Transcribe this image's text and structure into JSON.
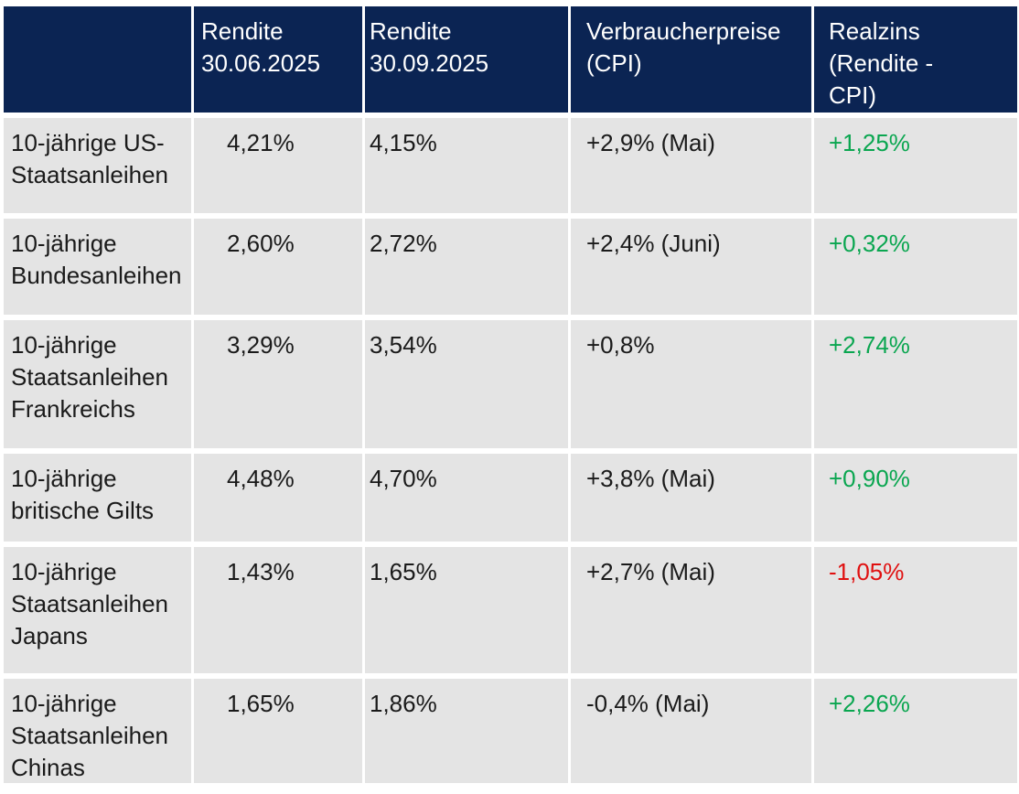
{
  "chart_data": {
    "type": "table",
    "columns": [
      "",
      "Rendite 30.06.2025",
      "Rendite 30.09.2025",
      "Verbraucherpreise (CPI)",
      "Realzins (Rendite - CPI)"
    ],
    "rows": [
      {
        "label": "10-jährige US-Staatsanleihen",
        "rendite_jun": "4,21%",
        "rendite_sep": "4,15%",
        "cpi": "+2,9% (Mai)",
        "realzins": "+1,25%",
        "realzins_trend": "positive"
      },
      {
        "label": "10-jährige Bundesanleihen",
        "rendite_jun": "2,60%",
        "rendite_sep": "2,72%",
        "cpi": "+2,4% (Juni)",
        "realzins": "+0,32%",
        "realzins_trend": "positive"
      },
      {
        "label": "10-jährige Staatsanleihen Frankreichs",
        "rendite_jun": "3,29%",
        "rendite_sep": "3,54%",
        "cpi": "+0,8%",
        "realzins": "+2,74%",
        "realzins_trend": "positive"
      },
      {
        "label": "10-jährige britische Gilts",
        "rendite_jun": "4,48%",
        "rendite_sep": "4,70%",
        "cpi": "+3,8% (Mai)",
        "realzins": "+0,90%",
        "realzins_trend": "positive"
      },
      {
        "label": "10-jährige Staatsanleihen Japans",
        "rendite_jun": "1,43%",
        "rendite_sep": "1,65%",
        "cpi": "+2,7% (Mai)",
        "realzins": "-1,05%",
        "realzins_trend": "negative"
      },
      {
        "label": "10-jährige Staatsanleihen Chinas",
        "rendite_jun": "1,65%",
        "rendite_sep": "1,86%",
        "cpi": "-0,4% (Mai)",
        "realzins": "+2,26%",
        "realzins_trend": "positive"
      }
    ]
  },
  "colors": {
    "header_bg": "#0b2453",
    "header_text": "#ffffff",
    "row_bg": "#e4e4e4",
    "body_text": "#1a1a1a",
    "positive": "#0aa650",
    "negative": "#e01010"
  }
}
